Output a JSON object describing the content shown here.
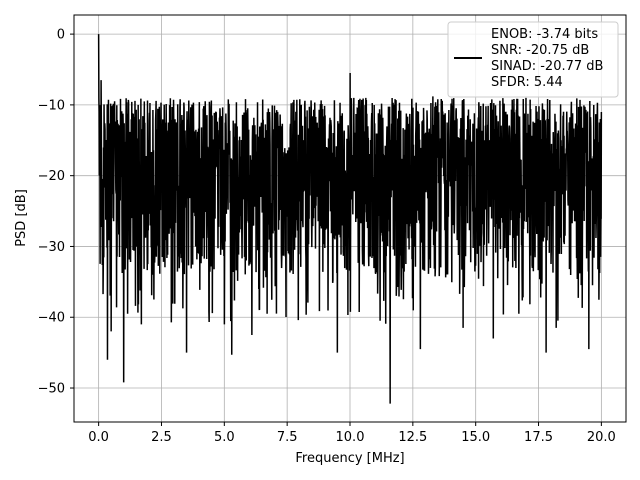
{
  "chart_data": {
    "type": "line",
    "xlabel": "Frequency [MHz]",
    "ylabel": "PSD [dB]",
    "xlim": [
      -0.98,
      20.98
    ],
    "ylim": [
      -54.8,
      2.7
    ],
    "x_ticks": [
      0.0,
      2.5,
      5.0,
      7.5,
      10.0,
      12.5,
      15.0,
      17.5,
      20.0
    ],
    "x_tick_labels": [
      "0.0",
      "2.5",
      "5.0",
      "7.5",
      "10.0",
      "12.5",
      "15.0",
      "17.5",
      "20.0"
    ],
    "y_ticks": [
      0,
      -10,
      -20,
      -30,
      -40,
      -50
    ],
    "y_tick_labels": [
      "0",
      "−10",
      "−20",
      "−30",
      "−40",
      "−50"
    ],
    "grid": true,
    "legend_position": "top-right",
    "series": [
      {
        "name": "ENOB: -3.74 bits\nSNR: -20.75 dB\nSINAD: -20.77 dB\nSFDR: 5.44",
        "color": "#000000",
        "x_range": [
          0.0,
          20.0
        ],
        "num_points": 2048,
        "values_description_free": true,
        "envelope": {
          "mean": -20.5,
          "upper_typical": -12.0,
          "lower_typical": -30.0
        },
        "notable_points": [
          {
            "x": 0.0,
            "y": 0.0
          },
          {
            "x": 0.03,
            "y": -20.0
          },
          {
            "x": 0.1,
            "y": -6.5
          },
          {
            "x": 0.35,
            "y": -46.0
          },
          {
            "x": 0.5,
            "y": -42.0
          },
          {
            "x": 1.0,
            "y": -49.2
          },
          {
            "x": 1.15,
            "y": -39.5
          },
          {
            "x": 1.7,
            "y": -41.0
          },
          {
            "x": 2.2,
            "y": -37.5
          },
          {
            "x": 3.5,
            "y": -45.0
          },
          {
            "x": 5.0,
            "y": -41.0
          },
          {
            "x": 5.3,
            "y": -45.3
          },
          {
            "x": 6.1,
            "y": -42.5
          },
          {
            "x": 6.7,
            "y": -39.5
          },
          {
            "x": 8.0,
            "y": -9.2
          },
          {
            "x": 9.5,
            "y": -45.0
          },
          {
            "x": 10.0,
            "y": -5.5
          },
          {
            "x": 11.2,
            "y": -40.5
          },
          {
            "x": 11.6,
            "y": -52.2
          },
          {
            "x": 12.8,
            "y": -44.5
          },
          {
            "x": 13.3,
            "y": -8.8
          },
          {
            "x": 14.5,
            "y": -41.5
          },
          {
            "x": 15.7,
            "y": -43.0
          },
          {
            "x": 17.8,
            "y": -45.0
          },
          {
            "x": 18.2,
            "y": -41.5
          },
          {
            "x": 19.5,
            "y": -44.5
          },
          {
            "x": 20.0,
            "y": -11.0
          }
        ]
      }
    ]
  }
}
